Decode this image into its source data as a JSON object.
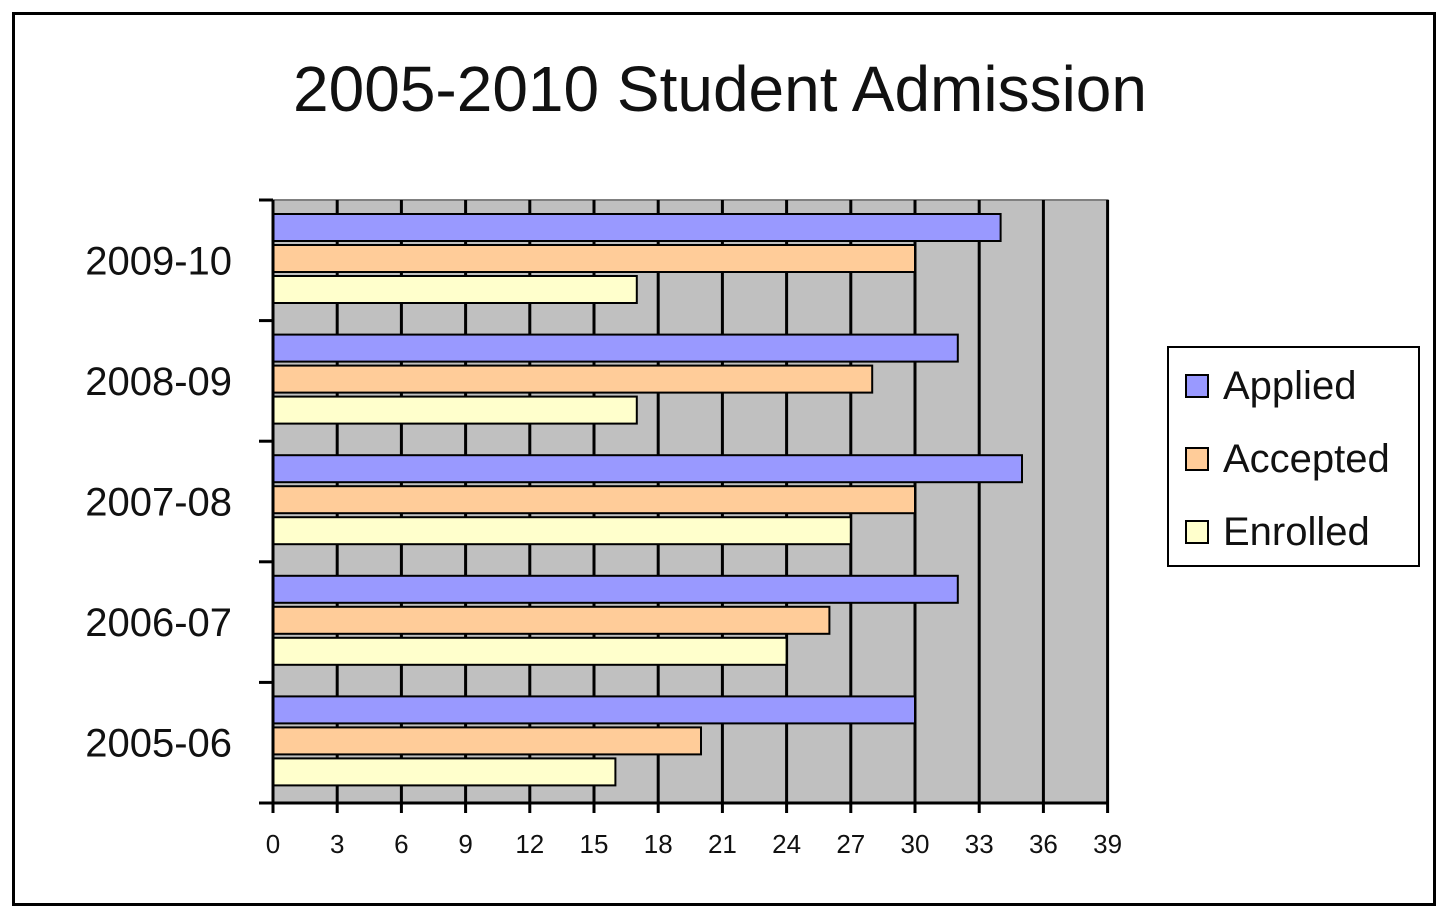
{
  "chart_data": {
    "type": "bar",
    "orientation": "horizontal",
    "title": "2005-2010 Student Admission",
    "categories": [
      "2005-06",
      "2006-07",
      "2007-08",
      "2008-09",
      "2009-10"
    ],
    "series": [
      {
        "name": "Applied",
        "color": "#9999ff",
        "values": [
          30,
          32,
          35,
          32,
          34
        ]
      },
      {
        "name": "Accepted",
        "color": "#ffcc99",
        "values": [
          20,
          26,
          30,
          28,
          30
        ]
      },
      {
        "name": "Enrolled",
        "color": "#ffffcc",
        "values": [
          16,
          24,
          27,
          17,
          17
        ]
      }
    ],
    "xlim": [
      0,
      39
    ],
    "xticks": [
      0,
      3,
      6,
      9,
      12,
      15,
      18,
      21,
      24,
      27,
      30,
      33,
      36,
      39
    ],
    "xlabel": "",
    "ylabel": "",
    "grid": true,
    "plot_background": "#c0c0c0",
    "legend_position": "right"
  }
}
